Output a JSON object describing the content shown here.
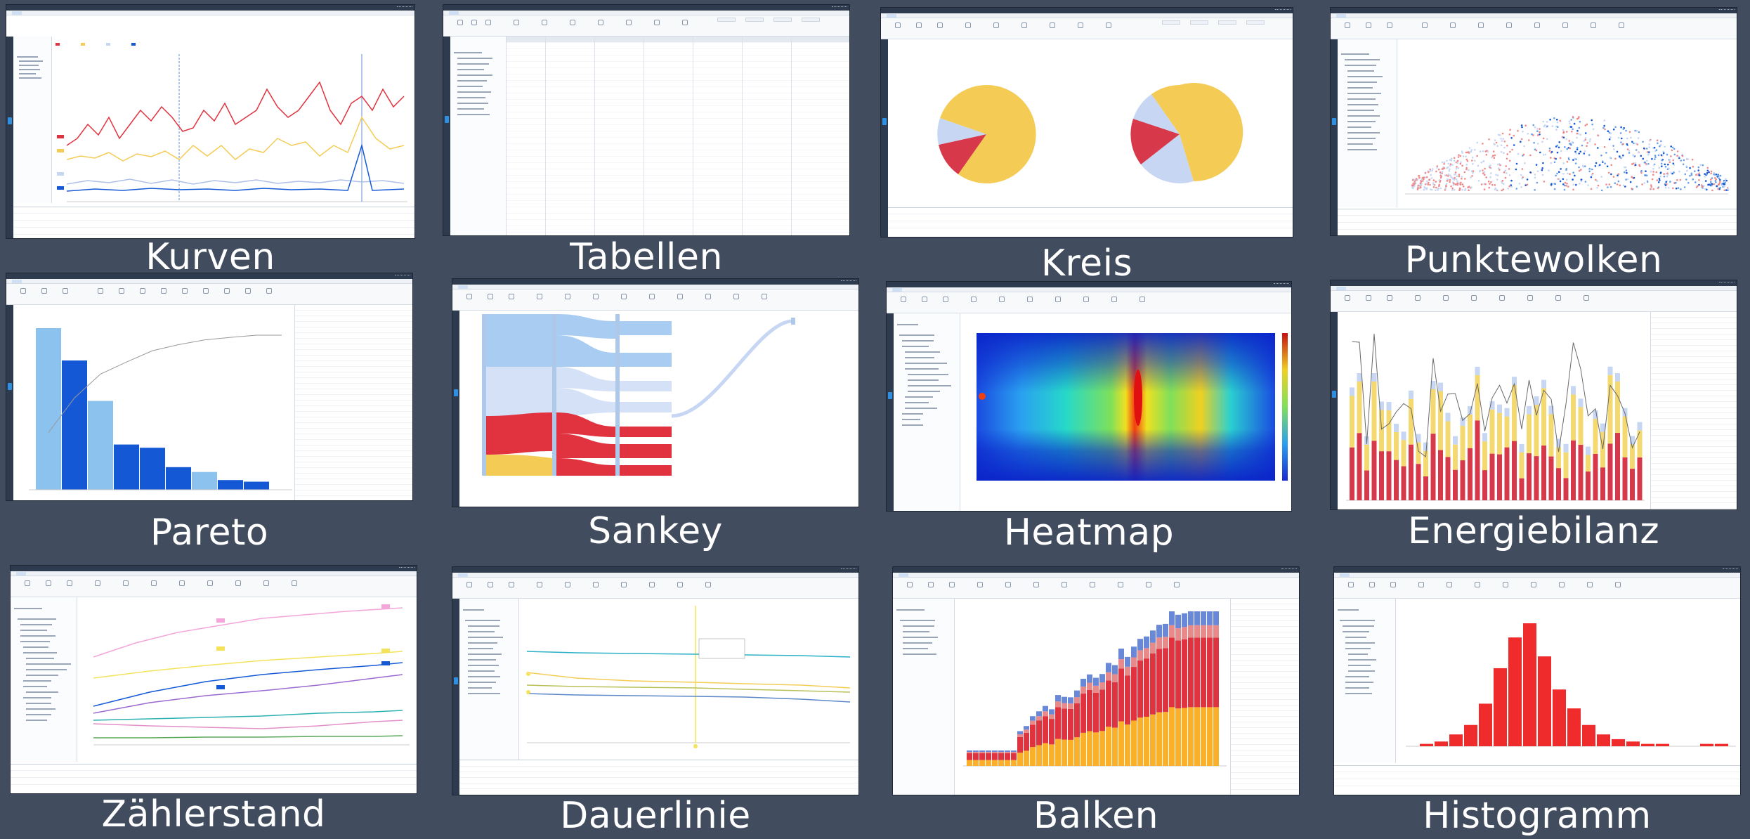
{
  "gallery": {
    "tiles": [
      {
        "id": "kurven",
        "caption": "Kurven"
      },
      {
        "id": "tabellen",
        "caption": "Tabellen"
      },
      {
        "id": "kreis",
        "caption": "Kreis"
      },
      {
        "id": "punktewolken",
        "caption": "Punktewolken"
      },
      {
        "id": "pareto",
        "caption": "Pareto"
      },
      {
        "id": "sankey",
        "caption": "Sankey"
      },
      {
        "id": "heatmap",
        "caption": "Heatmap"
      },
      {
        "id": "energiebilanz",
        "caption": "Energiebilanz"
      },
      {
        "id": "zaehlerstand",
        "caption": "Zählerstand"
      },
      {
        "id": "dauerlinie",
        "caption": "Dauerlinie"
      },
      {
        "id": "balken",
        "caption": "Balken"
      },
      {
        "id": "histogramm",
        "caption": "Histogramm"
      }
    ]
  },
  "colors": {
    "background": "#414c5e",
    "app_chrome": "#2e3a4d",
    "accent_blue": "#2f8fe0",
    "red": "#e0333f",
    "yellow": "#f4cc55",
    "orange": "#fbb02a",
    "light_blue": "#c6d6f3",
    "blue": "#1458d6",
    "sky": "#8cc2ee"
  },
  "charts": {
    "pareto": {
      "type": "bar",
      "values": [
        100,
        80,
        55,
        28,
        26,
        14,
        11,
        6,
        5
      ]
    },
    "balken": {
      "type": "bar",
      "stacked": true
    },
    "histogramm": {
      "type": "bar",
      "values": [
        1,
        2,
        5,
        9,
        18,
        33,
        46,
        52,
        38,
        24,
        16,
        9,
        5,
        3,
        2,
        1,
        1,
        0,
        0,
        1,
        1
      ]
    }
  }
}
